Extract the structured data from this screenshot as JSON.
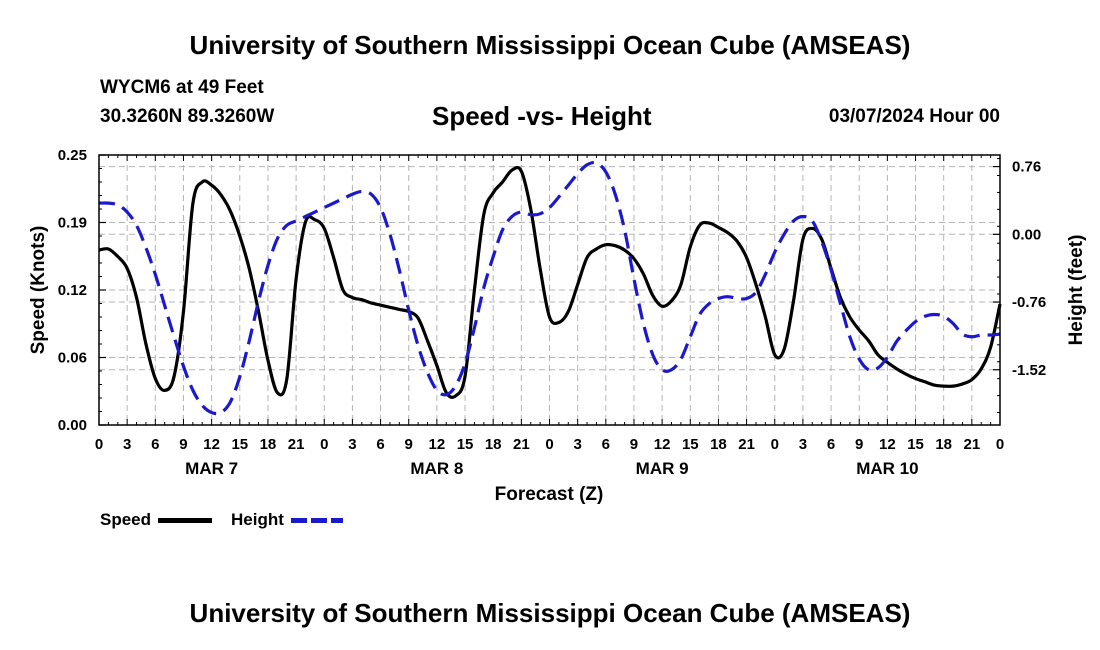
{
  "header": {
    "title": "University of Southern Mississippi Ocean Cube (AMSEAS)",
    "station": "WYCM6 at 49 Feet",
    "coords": "30.3260N  89.3260W",
    "subtitle": "Speed -vs- Height",
    "datetime": "03/07/2024 Hour 00"
  },
  "footer": {
    "title": "University of Southern Mississippi Ocean Cube (AMSEAS)"
  },
  "legend": {
    "speed_label": "Speed",
    "height_label": "Height"
  },
  "colors": {
    "speed": "#000000",
    "height": "#1a1acc",
    "grid": "#b4b4b4"
  },
  "chart_data": {
    "type": "line",
    "title": "Speed -vs- Height",
    "xlabel": "Forecast (Z)",
    "ylabel_left": "Speed (Knots)",
    "ylabel_right": "Height (feet)",
    "xlim": [
      0,
      96
    ],
    "ylim_left": [
      0,
      0.25
    ],
    "ylim_right": [
      -2.14,
      0.89
    ],
    "x_ticks": [
      0,
      3,
      6,
      9,
      12,
      15,
      18,
      21,
      24,
      27,
      30,
      33,
      36,
      39,
      42,
      45,
      48,
      51,
      54,
      57,
      60,
      63,
      66,
      69,
      72,
      75,
      78,
      81,
      84,
      87,
      90,
      93,
      96
    ],
    "x_tick_labels": [
      "0",
      "3",
      "6",
      "9",
      "12",
      "15",
      "18",
      "21",
      "0",
      "3",
      "6",
      "9",
      "12",
      "15",
      "18",
      "21",
      "0",
      "3",
      "6",
      "9",
      "12",
      "15",
      "18",
      "21",
      "0",
      "3",
      "6",
      "9",
      "12",
      "15",
      "18",
      "21",
      "0"
    ],
    "day_labels": [
      {
        "x": 12,
        "label": "MAR 7"
      },
      {
        "x": 36,
        "label": "MAR 8"
      },
      {
        "x": 60,
        "label": "MAR 9"
      },
      {
        "x": 84,
        "label": "MAR 10"
      }
    ],
    "y_left_ticks": [
      0,
      0.0625,
      0.125,
      0.1875,
      0.25
    ],
    "y_left_tick_labels": [
      "0.00",
      "0.06",
      "0.12",
      "0.19",
      "0.25"
    ],
    "y_right_ticks": [
      0.76,
      0,
      -0.76,
      -1.52
    ],
    "y_right_tick_labels": [
      "0.76",
      "0.00",
      "-0.76",
      "-1.52"
    ],
    "grid": true,
    "series": [
      {
        "name": "Speed",
        "axis": "left",
        "x": [
          0,
          1,
          2,
          3,
          4,
          5,
          6,
          7,
          8,
          9,
          10,
          11,
          12,
          13,
          14,
          15,
          16,
          17,
          18,
          19,
          20,
          21,
          22,
          23,
          24,
          25,
          26,
          27,
          28,
          29,
          30,
          31,
          32,
          33,
          34,
          35,
          36,
          37,
          38,
          39,
          40,
          41,
          42,
          43,
          44,
          45,
          46,
          47,
          48,
          49,
          50,
          51,
          52,
          53,
          54,
          55,
          56,
          57,
          58,
          59,
          60,
          61,
          62,
          63,
          64,
          65,
          66,
          67,
          68,
          69,
          70,
          71,
          72,
          73,
          74,
          75,
          76,
          77,
          78,
          79,
          80,
          81,
          82,
          83,
          84,
          85,
          86,
          87,
          88,
          89,
          90,
          91,
          92,
          93,
          94,
          95,
          96
        ],
        "values": [
          0.162,
          0.163,
          0.156,
          0.145,
          0.118,
          0.075,
          0.043,
          0.032,
          0.045,
          0.105,
          0.205,
          0.225,
          0.222,
          0.213,
          0.198,
          0.175,
          0.145,
          0.105,
          0.06,
          0.03,
          0.042,
          0.135,
          0.188,
          0.19,
          0.182,
          0.155,
          0.125,
          0.118,
          0.116,
          0.113,
          0.111,
          0.109,
          0.107,
          0.105,
          0.099,
          0.078,
          0.055,
          0.03,
          0.027,
          0.045,
          0.125,
          0.195,
          0.215,
          0.225,
          0.236,
          0.235,
          0.2,
          0.145,
          0.1,
          0.095,
          0.105,
          0.13,
          0.155,
          0.163,
          0.167,
          0.166,
          0.162,
          0.154,
          0.14,
          0.12,
          0.11,
          0.115,
          0.13,
          0.165,
          0.185,
          0.187,
          0.183,
          0.178,
          0.17,
          0.155,
          0.13,
          0.1,
          0.065,
          0.07,
          0.115,
          0.172,
          0.182,
          0.172,
          0.145,
          0.118,
          0.1,
          0.088,
          0.078,
          0.065,
          0.058,
          0.052,
          0.047,
          0.043,
          0.04,
          0.037,
          0.036,
          0.036,
          0.038,
          0.042,
          0.052,
          0.072,
          0.112
        ]
      },
      {
        "name": "Height",
        "axis": "right",
        "x": [
          0,
          1,
          2,
          3,
          4,
          5,
          6,
          7,
          8,
          9,
          10,
          11,
          12,
          13,
          14,
          15,
          16,
          17,
          18,
          19,
          20,
          21,
          22,
          23,
          24,
          25,
          26,
          27,
          28,
          29,
          30,
          31,
          32,
          33,
          34,
          35,
          36,
          37,
          38,
          39,
          40,
          41,
          42,
          43,
          44,
          45,
          46,
          47,
          48,
          49,
          50,
          51,
          52,
          53,
          54,
          55,
          56,
          57,
          58,
          59,
          60,
          61,
          62,
          63,
          64,
          65,
          66,
          67,
          68,
          69,
          70,
          71,
          72,
          73,
          74,
          75,
          76,
          77,
          78,
          79,
          80,
          81,
          82,
          83,
          84,
          85,
          86,
          87,
          88,
          89,
          90,
          91,
          92,
          93,
          94,
          95,
          96
        ],
        "values": [
          0.35,
          0.35,
          0.33,
          0.25,
          0.1,
          -0.15,
          -0.45,
          -0.8,
          -1.15,
          -1.48,
          -1.75,
          -1.92,
          -2.0,
          -2.0,
          -1.88,
          -1.6,
          -1.2,
          -0.75,
          -0.35,
          -0.05,
          0.1,
          0.15,
          0.2,
          0.25,
          0.3,
          0.35,
          0.4,
          0.45,
          0.48,
          0.45,
          0.3,
          0.0,
          -0.4,
          -0.85,
          -1.25,
          -1.55,
          -1.75,
          -1.8,
          -1.7,
          -1.45,
          -1.05,
          -0.6,
          -0.25,
          0.05,
          0.2,
          0.25,
          0.22,
          0.23,
          0.3,
          0.42,
          0.55,
          0.68,
          0.78,
          0.8,
          0.7,
          0.45,
          0.05,
          -0.5,
          -1.0,
          -1.35,
          -1.52,
          -1.52,
          -1.4,
          -1.15,
          -0.9,
          -0.78,
          -0.72,
          -0.7,
          -0.72,
          -0.72,
          -0.65,
          -0.45,
          -0.2,
          0.0,
          0.15,
          0.2,
          0.15,
          -0.08,
          -0.4,
          -0.78,
          -1.15,
          -1.4,
          -1.52,
          -1.5,
          -1.38,
          -1.2,
          -1.08,
          -0.98,
          -0.92,
          -0.9,
          -0.92,
          -1.0,
          -1.12,
          -1.15,
          -1.13,
          -1.13,
          -1.12
        ]
      }
    ]
  }
}
